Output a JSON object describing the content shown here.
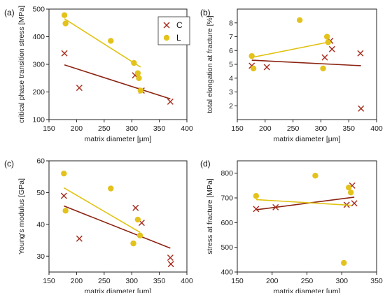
{
  "colors": {
    "C": "#a52a1a",
    "L": "#e3c21c",
    "C_fit": "#8b2312",
    "L_fit": "#e0c210"
  },
  "legend": [
    {
      "key": "C",
      "label": "C",
      "marker": "cross"
    },
    {
      "key": "L",
      "label": "L",
      "marker": "circle"
    }
  ],
  "chart_data": [
    {
      "panel": "(a)",
      "type": "scatter",
      "xlabel": "matrix diameter [µm]",
      "ylabel": "critical phase transition stress [MPa]",
      "xlim": [
        150,
        400
      ],
      "ylim": [
        100,
        500
      ],
      "xticks": [
        150,
        200,
        250,
        300,
        350,
        400
      ],
      "yticks": [
        100,
        200,
        300,
        400,
        500
      ],
      "series": [
        {
          "key": "C",
          "marker": "cross",
          "x": [
            178,
            205,
            306,
            318,
            370
          ],
          "y": [
            340,
            215,
            260,
            205,
            165
          ],
          "fit": {
            "x": [
              178,
              370
            ],
            "y": [
              298,
              175
            ]
          }
        },
        {
          "key": "L",
          "marker": "circle",
          "x": [
            178,
            180,
            262,
            304,
            311,
            313,
            316
          ],
          "y": [
            478,
            448,
            385,
            305,
            268,
            250,
            205
          ],
          "fit": {
            "x": [
              178,
              316
            ],
            "y": [
              465,
              290
            ]
          }
        }
      ]
    },
    {
      "panel": "(b)",
      "type": "scatter",
      "xlabel": "matrix diameter [µm]",
      "ylabel": "total elongation at fracture [%]",
      "xlim": [
        150,
        400
      ],
      "ylim": [
        1,
        9
      ],
      "xticks": [
        150,
        200,
        250,
        300,
        350,
        400
      ],
      "yticks": [
        2,
        3,
        4,
        5,
        6,
        7,
        8
      ],
      "series": [
        {
          "key": "C",
          "marker": "cross",
          "x": [
            176,
            203,
            307,
            317,
            320,
            371,
            372
          ],
          "y": [
            4.9,
            4.8,
            5.5,
            6.7,
            6.1,
            5.8,
            1.8
          ],
          "fit": {
            "x": [
              176,
              372
            ],
            "y": [
              5.3,
              4.9
            ]
          }
        },
        {
          "key": "L",
          "marker": "circle",
          "x": [
            176,
            179,
            262,
            304,
            311,
            313
          ],
          "y": [
            5.6,
            4.7,
            8.2,
            4.7,
            7.0,
            6.6
          ],
          "fit": {
            "x": [
              176,
              313
            ],
            "y": [
              5.5,
              6.6
            ]
          }
        }
      ]
    },
    {
      "panel": "(c)",
      "type": "scatter",
      "xlabel": "matrix diameter [µm]",
      "ylabel": "Young's modulus [GPa]",
      "xlim": [
        150,
        400
      ],
      "ylim": [
        25,
        60
      ],
      "xticks": [
        150,
        200,
        250,
        300,
        350,
        400
      ],
      "yticks": [
        30,
        40,
        50,
        60
      ],
      "series": [
        {
          "key": "C",
          "marker": "cross",
          "x": [
            177,
            205,
            307,
            318,
            370,
            371
          ],
          "y": [
            49,
            35.5,
            45.2,
            40.5,
            29.5,
            27.5
          ],
          "fit": {
            "x": [
              177,
              370
            ],
            "y": [
              45.8,
              32.5
            ]
          }
        },
        {
          "key": "L",
          "marker": "circle",
          "x": [
            177,
            180,
            262,
            303,
            311,
            315
          ],
          "y": [
            56,
            44.3,
            51.3,
            34,
            41.5,
            36.5
          ],
          "fit": {
            "x": [
              177,
              315
            ],
            "y": [
              51.5,
              37.5
            ]
          }
        }
      ]
    },
    {
      "panel": "(d)",
      "type": "scatter",
      "xlabel": "matrix diameter [µm]",
      "ylabel": "stress at fracture [MPa]",
      "xlim": [
        150,
        350
      ],
      "ylim": [
        400,
        850
      ],
      "xticks": [
        150,
        200,
        250,
        300,
        350
      ],
      "yticks": [
        400,
        500,
        600,
        700,
        800
      ],
      "series": [
        {
          "key": "C",
          "marker": "cross",
          "x": [
            177,
            205,
            307,
            315,
            318
          ],
          "y": [
            655,
            662,
            672,
            750,
            678
          ],
          "fit": {
            "x": [
              177,
              318
            ],
            "y": [
              652,
              703
            ]
          }
        },
        {
          "key": "L",
          "marker": "circle",
          "x": [
            177,
            262,
            303,
            310,
            313
          ],
          "y": [
            708,
            790,
            437,
            742,
            722
          ],
          "fit": {
            "x": [
              177,
              313
            ],
            "y": [
              693,
              670
            ]
          }
        }
      ]
    }
  ]
}
